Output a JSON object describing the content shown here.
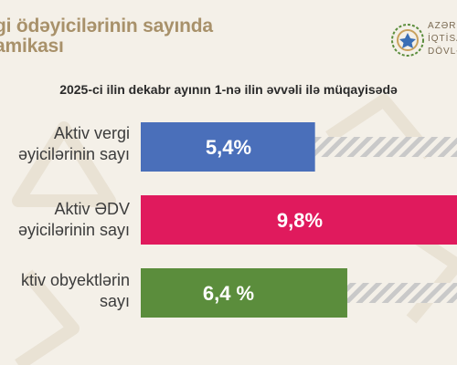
{
  "header": {
    "title_line1": "gi ödəyicilərinin sayında",
    "title_line2": "amikası",
    "logo_lines": [
      "AZƏRBA",
      "İQTİSAD",
      "DÖVLƏT"
    ]
  },
  "chart_data": {
    "type": "bar",
    "orientation": "horizontal",
    "subtitle": "2025-ci ilin dekabr ayının 1-nə ilin əvvəli ilə müqayisədə",
    "categories": [
      [
        "Aktiv vergi",
        "əyicilərinin sayı"
      ],
      [
        "Aktiv ƏDV",
        "əyicilərinin sayı"
      ],
      [
        "ktiv obyektlərin",
        "sayı"
      ]
    ],
    "values": [
      5.4,
      9.8,
      6.4
    ],
    "value_labels": [
      "5,4%",
      "9,8%",
      "6,4 %"
    ],
    "colors": [
      "#4a6fba",
      "#e01a5d",
      "#5b8d3c"
    ],
    "xlim": [
      0,
      9.8
    ],
    "legend": "none",
    "grid": false,
    "remainder_style": "hatched-gray"
  }
}
